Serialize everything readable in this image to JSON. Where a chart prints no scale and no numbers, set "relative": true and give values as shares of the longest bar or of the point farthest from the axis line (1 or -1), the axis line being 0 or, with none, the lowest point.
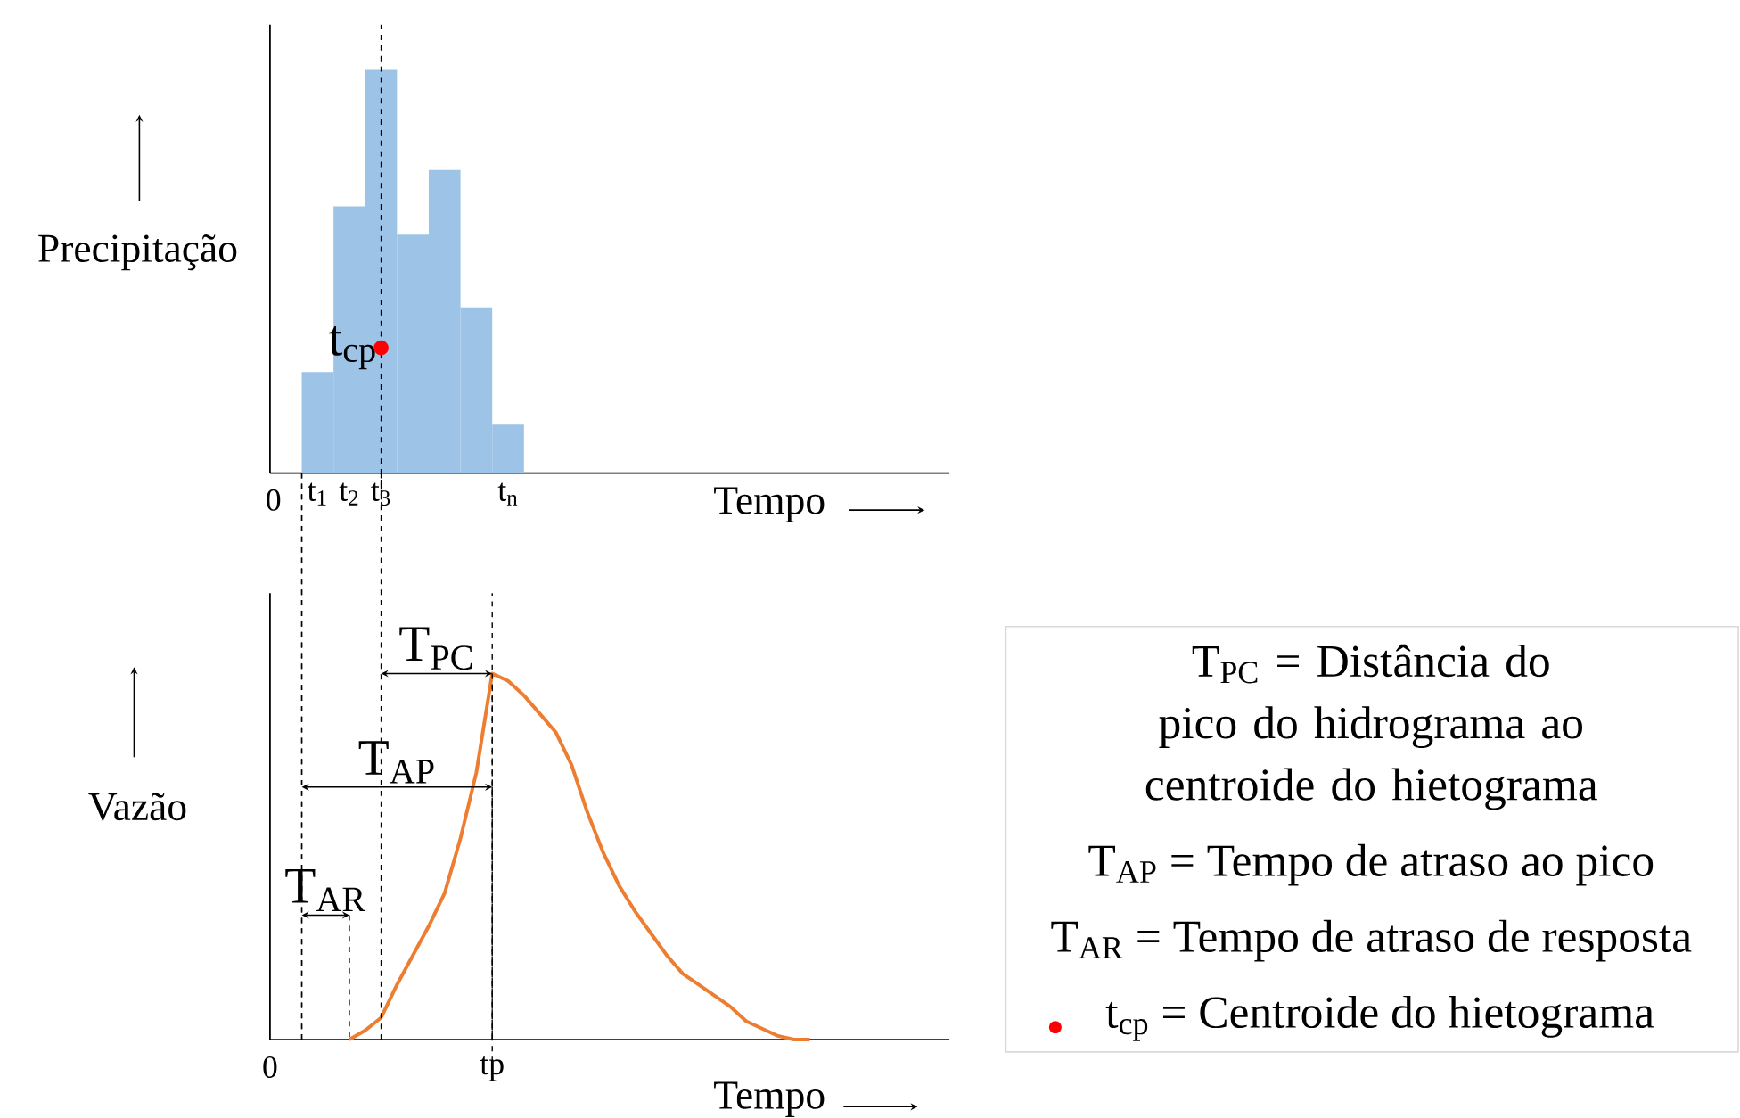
{
  "chart_data": [
    {
      "type": "bar",
      "ylabel": "Precipitação",
      "xlabel": "Tempo",
      "relative": true,
      "color": "#9dc3e6",
      "categories": [
        "t$_{1}$",
        "t$_{2}$",
        "t$_{3}$",
        null,
        null,
        null,
        "t$_{n}$"
      ],
      "values": [
        0.25,
        0.66,
        1,
        0.59,
        0.75,
        0.41,
        0.12
      ],
      "series": [
        {
          "type": "scatter",
          "name": "t$_{cp}$",
          "x": [
            "t$_{3}$"
          ],
          "values": [
            0.31
          ],
          "color": "#ff0000"
        }
      ],
      "ref_lines": [
        {
          "axis": "x",
          "value": "t$_{3}$",
          "line_style": "dashed"
        }
      ],
      "annotations": [
        "0"
      ]
    },
    {
      "type": "line",
      "ylabel": "Vazão",
      "xlabel": "Tempo",
      "relative": true,
      "categories": [
        "0",
        null,
        null,
        null,
        null,
        null,
        null,
        null,
        null,
        null,
        null,
        null,
        null,
        null,
        "tp",
        null,
        null,
        null,
        null,
        null,
        null,
        null,
        null,
        null,
        null,
        null,
        null,
        null,
        null,
        null,
        null,
        null,
        null,
        null,
        null,
        null,
        null,
        null,
        null,
        null,
        null,
        null,
        null
      ],
      "series": [
        {
          "color": "#ed7d31",
          "values": [
            null,
            null,
            null,
            null,
            null,
            0,
            0.025,
            0.06,
            0.15,
            0.23,
            0.31,
            0.4,
            0.55,
            0.73,
            1,
            0.98,
            0.94,
            0.89,
            0.84,
            0.75,
            0.62,
            0.51,
            0.42,
            0.35,
            0.29,
            0.23,
            0.18,
            0.15,
            0.12,
            0.09,
            0.05,
            0.03,
            0.01,
            0,
            0,
            null,
            null,
            null,
            null,
            null,
            null,
            null,
            null
          ]
        },
        {
          "name": "T$_{PC}$",
          "color": "#000000",
          "values": [
            null,
            null,
            null,
            null,
            null,
            null,
            null,
            1,
            1,
            1,
            1,
            1,
            1,
            1,
            1,
            null,
            null,
            null,
            null,
            null,
            null,
            null,
            null,
            null,
            null,
            null,
            null,
            null,
            null,
            null,
            null,
            null,
            null,
            null,
            null,
            null,
            null,
            null,
            null,
            null,
            null,
            null,
            null
          ]
        },
        {
          "name": "T$_{AP}$",
          "color": "#000000",
          "values": [
            null,
            null,
            0.69,
            0.69,
            0.69,
            0.69,
            0.69,
            0.69,
            0.69,
            0.69,
            0.69,
            0.69,
            0.69,
            0.69,
            0.69,
            null,
            null,
            null,
            null,
            null,
            null,
            null,
            null,
            null,
            null,
            null,
            null,
            null,
            null,
            null,
            null,
            null,
            null,
            null,
            null,
            null,
            null,
            null,
            null,
            null,
            null,
            null,
            null
          ]
        },
        {
          "name": "T$_{AR}$",
          "color": "#000000",
          "values": [
            null,
            null,
            0.34,
            0.34,
            0.34,
            0.34,
            null,
            null,
            null,
            null,
            null,
            null,
            null,
            null,
            null,
            null,
            null,
            null,
            null,
            null,
            null,
            null,
            null,
            null,
            null,
            null,
            null,
            null,
            null,
            null,
            null,
            null,
            null,
            null,
            null,
            null,
            null,
            null,
            null,
            null,
            null,
            null,
            null
          ]
        }
      ],
      "ref_lines": [
        {
          "axis": "x",
          "value": "tp",
          "line_style": "dashed"
        }
      ]
    },
    {
      "type": "other",
      "annotations": [
        "T$_{PC}$ = Distância do pico do hidrograma ao centroide do hietograma",
        "T$_{AP}$ = Tempo de atraso ao pico",
        "T$_{AR}$ = Tempo de atraso de resposta",
        "t$_{cp}$ = Centroide do hietograma"
      ]
    }
  ]
}
